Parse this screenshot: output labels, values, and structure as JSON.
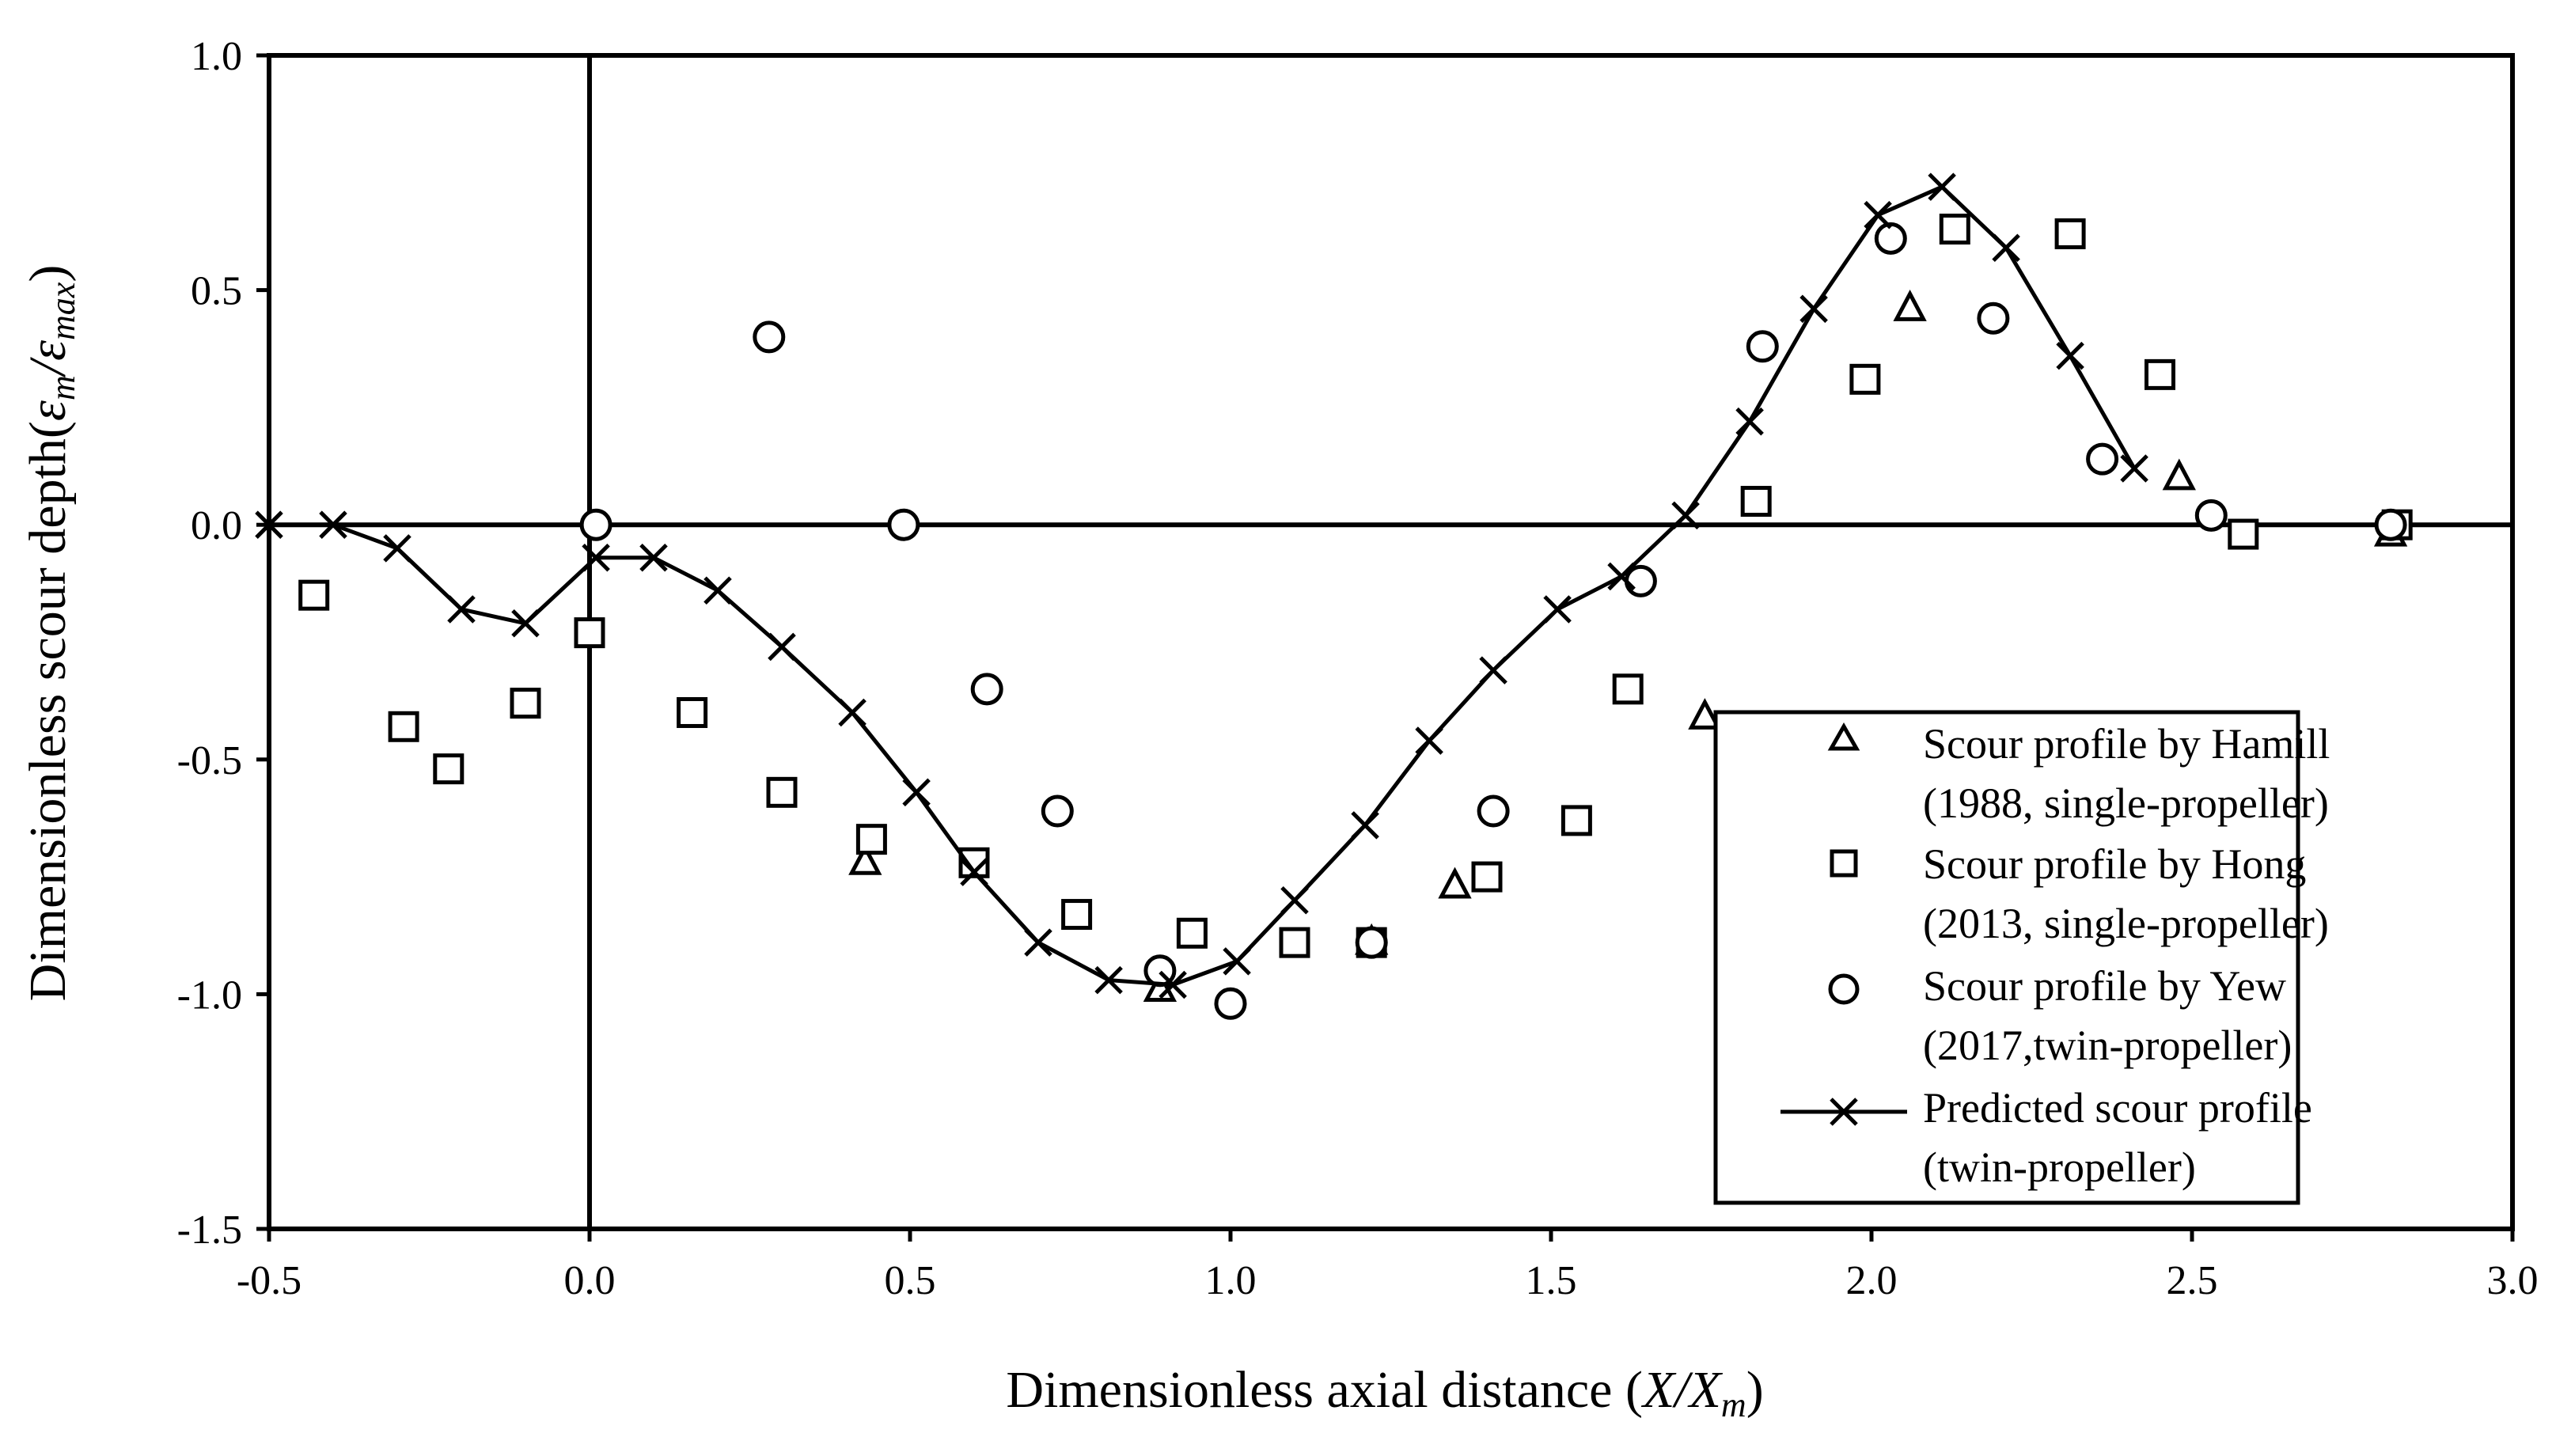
{
  "chart_data": {
    "type": "scatter",
    "title": "",
    "xlabel": "Dimensionless axial distance (X/Xm)",
    "xlabel_parts": {
      "text": "Dimensionless axial distance (",
      "var": "X/X",
      "sub": "m",
      "end": ")"
    },
    "ylabel": "Dimensionless scour depth(εm/εmax)",
    "ylabel_parts": {
      "text": "Dimensionless scour depth(",
      "v1": "ε",
      "s1": "m",
      "slash": "/",
      "v2": "ε",
      "s2": "max",
      "end": ")"
    },
    "xlim": [
      -0.5,
      3.0
    ],
    "ylim": [
      -1.5,
      1.0
    ],
    "x_ticks": [
      -0.5,
      0.0,
      0.5,
      1.0,
      1.5,
      2.0,
      2.5,
      3.0
    ],
    "x_tick_labels": [
      "-0.5",
      "0.0",
      "0.5",
      "1.0",
      "1.5",
      "2.0",
      "2.5",
      "3.0"
    ],
    "y_ticks": [
      1.0,
      0.5,
      0.0,
      -0.5,
      -1.0,
      -1.5
    ],
    "y_tick_labels": [
      "1.0",
      "0.5",
      "0.0",
      "-0.5",
      "-1.0",
      "-1.5"
    ],
    "grid": false,
    "legend_position": "bottom-right",
    "series": [
      {
        "name": "hamill",
        "legend": [
          "Scour profile by Hamill",
          "(1988, single-propeller)"
        ],
        "marker": "triangle",
        "line": false,
        "points": [
          [
            0.43,
            -0.72
          ],
          [
            0.89,
            -0.99
          ],
          [
            1.22,
            -0.89
          ],
          [
            1.35,
            -0.77
          ],
          [
            1.74,
            -0.41
          ],
          [
            2.06,
            0.46
          ],
          [
            2.48,
            0.1
          ],
          [
            2.81,
            -0.02
          ]
        ]
      },
      {
        "name": "hong",
        "legend": [
          "Scour profile by Hong",
          "(2013, single-propeller)"
        ],
        "marker": "square",
        "line": false,
        "points": [
          [
            -0.43,
            -0.15
          ],
          [
            -0.29,
            -0.43
          ],
          [
            -0.22,
            -0.52
          ],
          [
            -0.1,
            -0.38
          ],
          [
            0.0,
            -0.23
          ],
          [
            0.16,
            -0.4
          ],
          [
            0.3,
            -0.57
          ],
          [
            0.44,
            -0.67
          ],
          [
            0.6,
            -0.72
          ],
          [
            0.76,
            -0.83
          ],
          [
            0.94,
            -0.87
          ],
          [
            1.1,
            -0.89
          ],
          [
            1.22,
            -0.89
          ],
          [
            1.4,
            -0.75
          ],
          [
            1.54,
            -0.63
          ],
          [
            1.62,
            -0.35
          ],
          [
            1.82,
            0.05
          ],
          [
            1.99,
            0.31
          ],
          [
            2.13,
            0.63
          ],
          [
            2.31,
            0.62
          ],
          [
            2.45,
            0.32
          ],
          [
            2.58,
            -0.02
          ],
          [
            2.82,
            0.0
          ]
        ]
      },
      {
        "name": "yew",
        "legend": [
          "Scour profile by Yew",
          "(2017,twin-propeller)"
        ],
        "marker": "circle",
        "line": false,
        "points": [
          [
            0.01,
            0.0
          ],
          [
            0.28,
            0.4
          ],
          [
            0.49,
            0.0
          ],
          [
            0.62,
            -0.35
          ],
          [
            0.73,
            -0.61
          ],
          [
            0.89,
            -0.95
          ],
          [
            1.0,
            -1.02
          ],
          [
            1.22,
            -0.89
          ],
          [
            1.41,
            -0.61
          ],
          [
            1.64,
            -0.12
          ],
          [
            1.83,
            0.38
          ],
          [
            2.03,
            0.61
          ],
          [
            2.19,
            0.44
          ],
          [
            2.36,
            0.14
          ],
          [
            2.53,
            0.02
          ],
          [
            2.81,
            0.0
          ]
        ]
      },
      {
        "name": "predicted",
        "legend": [
          "Predicted scour profile",
          "(twin-propeller)"
        ],
        "marker": "x",
        "line": true,
        "points": [
          [
            -0.5,
            0.0
          ],
          [
            -0.4,
            0.0
          ],
          [
            -0.3,
            -0.05
          ],
          [
            -0.2,
            -0.18
          ],
          [
            -0.1,
            -0.21
          ],
          [
            0.01,
            -0.07
          ],
          [
            0.1,
            -0.07
          ],
          [
            0.2,
            -0.14
          ],
          [
            0.3,
            -0.26
          ],
          [
            0.41,
            -0.4
          ],
          [
            0.51,
            -0.57
          ],
          [
            0.6,
            -0.74
          ],
          [
            0.7,
            -0.89
          ],
          [
            0.81,
            -0.97
          ],
          [
            0.91,
            -0.98
          ],
          [
            1.01,
            -0.93
          ],
          [
            1.1,
            -0.8
          ],
          [
            1.21,
            -0.64
          ],
          [
            1.31,
            -0.46
          ],
          [
            1.41,
            -0.31
          ],
          [
            1.51,
            -0.18
          ],
          [
            1.61,
            -0.11
          ],
          [
            1.71,
            0.02
          ],
          [
            1.81,
            0.22
          ],
          [
            1.91,
            0.46
          ],
          [
            2.01,
            0.66
          ],
          [
            2.11,
            0.72
          ],
          [
            2.21,
            0.59
          ],
          [
            2.31,
            0.36
          ],
          [
            2.41,
            0.12
          ]
        ]
      }
    ]
  }
}
